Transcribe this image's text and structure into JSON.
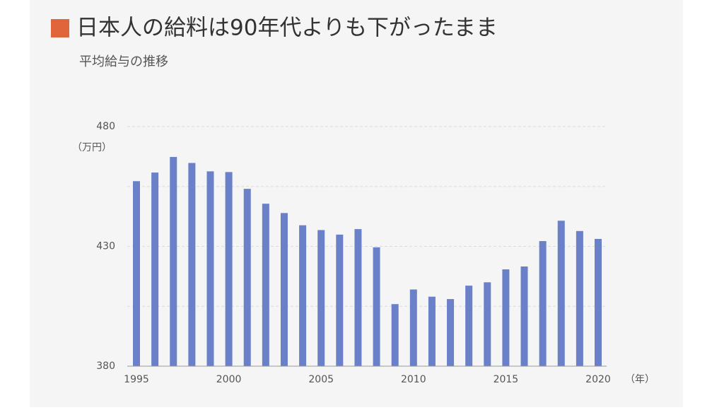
{
  "chart_data": {
    "type": "bar",
    "title": "日本人の給料は90年代よりも下がったまま",
    "subtitle": "平均給与の推移",
    "y_unit_label": "（万円）",
    "x_unit_label": "（年）",
    "categories": [
      "1995",
      null,
      null,
      null,
      null,
      "2000",
      null,
      null,
      null,
      null,
      "2005",
      null,
      null,
      null,
      null,
      "2010",
      null,
      null,
      null,
      null,
      "2015",
      null,
      null,
      null,
      null,
      "2020"
    ],
    "values": [
      457.2,
      460.8,
      467.3,
      464.8,
      461.3,
      461.0,
      454.0,
      447.8,
      443.9,
      438.8,
      436.8,
      434.9,
      437.2,
      429.6,
      405.9,
      412.0,
      409.0,
      408.0,
      413.6,
      415.0,
      420.4,
      421.6,
      432.2,
      440.7,
      436.4,
      433.1
    ],
    "color": "#6a80c8",
    "title_marker_color": "#e0653a",
    "ylim": [
      380,
      480
    ],
    "yticks": [
      380,
      430,
      480
    ],
    "minor_gridlines": [
      405,
      455
    ],
    "grid": true
  }
}
